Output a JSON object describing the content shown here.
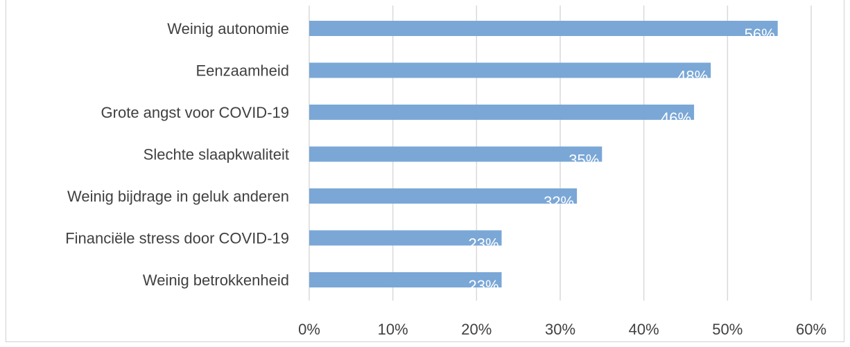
{
  "chart_data": {
    "type": "bar",
    "orientation": "horizontal",
    "categories": [
      "Weinig autonomie",
      "Eenzaamheid",
      "Grote angst voor COVID-19",
      "Slechte slaapkwaliteit",
      "Weinig bijdrage in geluk anderen",
      "Financiële stress door COVID-19",
      "Weinig betrokkenheid"
    ],
    "values": [
      56,
      48,
      46,
      35,
      32,
      23,
      23
    ],
    "data_labels": [
      "56%",
      "48%",
      "46%",
      "35%",
      "32%",
      "23%",
      "23%"
    ],
    "xlim": [
      0,
      60
    ],
    "x_ticks": [
      "0%",
      "10%",
      "20%",
      "30%",
      "40%",
      "50%",
      "60%"
    ],
    "grid": true,
    "bar_color": "#7aa7d6",
    "grid_color": "#d9d9d9",
    "label_color": "#404040"
  }
}
